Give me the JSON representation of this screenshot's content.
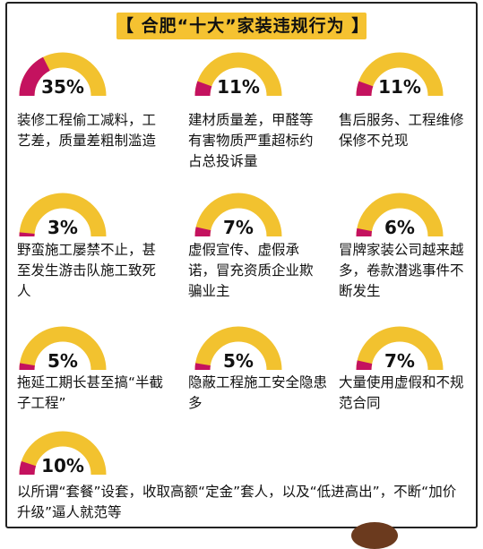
{
  "colors": {
    "gold": "#f2c22f",
    "magenta": "#c4125f",
    "title_bg": "#f5c231"
  },
  "chart_data": {
    "type": "gauge",
    "title": "【 合肥“十大”家装违规行为 】",
    "items": [
      {
        "value": 35,
        "label": "35%",
        "text": "装修工程偷工减料，工艺差，质量差粗制滥造"
      },
      {
        "value": 11,
        "label": "11%",
        "text": "建材质量差，甲醛等有害物质严重超标约占总投诉量"
      },
      {
        "value": 11,
        "label": "11%",
        "text": "售后服务、工程维修保修不兑现"
      },
      {
        "value": 3,
        "label": "3%",
        "text": "野蛮施工屡禁不止，甚至发生游击队施工致死人"
      },
      {
        "value": 7,
        "label": "7%",
        "text": "虚假宣传、虚假承诺，冒充资质企业欺骗业主"
      },
      {
        "value": 6,
        "label": "6%",
        "text": "冒牌家装公司越来越多，卷款潜逃事件不断发生"
      },
      {
        "value": 5,
        "label": "5%",
        "text": "拖延工期长甚至搞“半截子工程”"
      },
      {
        "value": 5,
        "label": "5%",
        "text": "隐蔽工程施工安全隐患多"
      },
      {
        "value": 7,
        "label": "7%",
        "text": "大量使用虚假和不规范合同"
      },
      {
        "value": 10,
        "label": "10%",
        "text": "以所谓“套餐”设套，收取高额“定金”套人，以及“低进高出”，不断“加价升级”逼人就范等"
      }
    ]
  }
}
